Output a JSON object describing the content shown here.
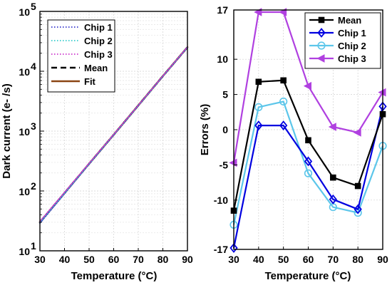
{
  "chart_data": [
    {
      "type": "line",
      "xlabel": "Temperature (°C)",
      "ylabel": "Dark current (e- /s)",
      "xlim": [
        30,
        90
      ],
      "ylim": [
        10,
        100000
      ],
      "yscale": "log",
      "xticks": [
        "30",
        "40",
        "50",
        "60",
        "70",
        "80",
        "90"
      ],
      "yticks": [
        {
          "value": 10,
          "base": "10",
          "exp": "1"
        },
        {
          "value": 100,
          "base": "10",
          "exp": "2"
        },
        {
          "value": 1000,
          "base": "10",
          "exp": "3"
        },
        {
          "value": 10000,
          "base": "10",
          "exp": "4"
        },
        {
          "value": 100000,
          "base": "10",
          "exp": "5"
        }
      ],
      "grid": true,
      "legend_position": "top-left",
      "x": [
        30,
        40,
        50,
        60,
        70,
        80,
        90
      ],
      "series": [
        {
          "name": "Chip 1",
          "color": "#3333cc",
          "style": "dotted",
          "values": [
            29,
            90,
            280,
            860,
            2650,
            8200,
            25000
          ]
        },
        {
          "name": "Chip 2",
          "color": "#33cccc",
          "style": "dotted",
          "values": [
            30,
            92,
            285,
            870,
            2680,
            8300,
            25200
          ]
        },
        {
          "name": "Chip 3",
          "color": "#cc33cc",
          "style": "dotted",
          "values": [
            31,
            95,
            290,
            880,
            2700,
            8350,
            25400
          ]
        },
        {
          "name": "Mean",
          "color": "#000000",
          "style": "dashed",
          "values": [
            30,
            92,
            285,
            870,
            2680,
            8300,
            25200
          ]
        },
        {
          "name": "Fit",
          "color": "#8b4513",
          "style": "solid",
          "values": [
            30,
            92,
            285,
            870,
            2680,
            8300,
            25200
          ]
        }
      ]
    },
    {
      "type": "line",
      "xlabel": "Temperature (°C)",
      "ylabel": "Errors (%)",
      "xlim": [
        30,
        90
      ],
      "ylim": [
        -17,
        17
      ],
      "xticks": [
        "30",
        "40",
        "50",
        "60",
        "70",
        "80",
        "90"
      ],
      "yticks": [
        {
          "value": 17,
          "label": "17"
        },
        {
          "value": 10,
          "label": "10"
        },
        {
          "value": 5,
          "label": "5"
        },
        {
          "value": 0,
          "label": "0"
        },
        {
          "value": -5,
          "label": "-5"
        },
        {
          "value": -10,
          "label": "-10"
        },
        {
          "value": -17,
          "label": "-17"
        }
      ],
      "grid": true,
      "legend_position": "top-right",
      "x": [
        30,
        40,
        50,
        60,
        70,
        80,
        90
      ],
      "series": [
        {
          "name": "Mean",
          "color": "#000000",
          "marker": "square",
          "values": [
            -11.5,
            6.8,
            7.0,
            -1.5,
            -6.8,
            -8.0,
            2.2
          ]
        },
        {
          "name": "Chip 1",
          "color": "#0000e0",
          "marker": "diamond",
          "values": [
            -16.8,
            0.6,
            0.6,
            -4.5,
            -9.9,
            -11.3,
            3.3
          ]
        },
        {
          "name": "Chip 2",
          "color": "#5cc6ea",
          "marker": "circle",
          "values": [
            -13.5,
            3.2,
            4.0,
            -6.2,
            -11.0,
            -11.8,
            -2.3
          ]
        },
        {
          "name": "Chip 3",
          "color": "#b040e0",
          "marker": "triangle-left",
          "values": [
            -4.7,
            16.7,
            16.7,
            6.2,
            0.4,
            -0.4,
            5.3
          ]
        }
      ]
    }
  ]
}
